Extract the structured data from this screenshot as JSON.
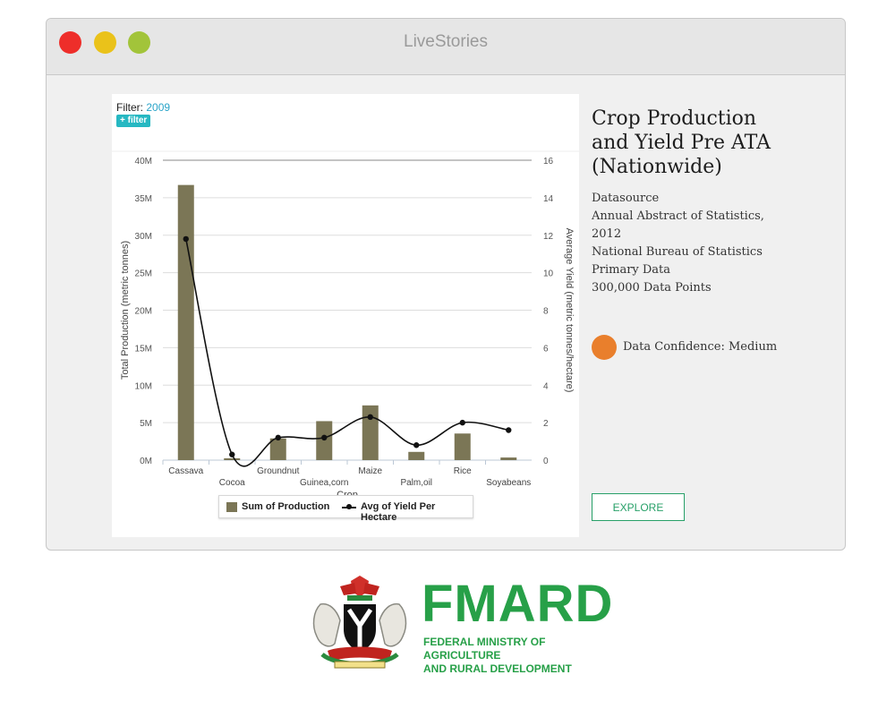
{
  "window": {
    "title": "LiveStories"
  },
  "filter": {
    "label": "Filter:",
    "value": "2009",
    "button_label": "+ filter"
  },
  "chart_data": {
    "type": "bar",
    "categories": [
      "Cassava",
      "Cocoa",
      "Groundnut",
      "Guinea,corn",
      "Maize",
      "Palm,oil",
      "Rice",
      "Soyabeans"
    ],
    "series": [
      {
        "name": "Sum of Production",
        "type": "bar",
        "axis": "left",
        "values": [
          36700000,
          250000,
          2900000,
          5200000,
          7300000,
          1100000,
          3550000,
          350000
        ]
      },
      {
        "name": "Avg of Yield Per Hectare",
        "type": "line",
        "axis": "right",
        "values": [
          11.8,
          0.3,
          1.2,
          1.2,
          2.3,
          0.8,
          2.0,
          1.6
        ]
      }
    ],
    "xlabel": "Crop",
    "ylabel": "Total Production (metric tonnes)",
    "y2label": "Average Yield (metric tonnes/hectare)",
    "ylim": [
      0,
      40000000
    ],
    "y2lim": [
      0,
      16
    ],
    "yticks": [
      "0M",
      "5M",
      "10M",
      "15M",
      "20M",
      "25M",
      "30M",
      "35M",
      "40M"
    ],
    "y2ticks": [
      "0",
      "2",
      "4",
      "6",
      "8",
      "10",
      "12",
      "14",
      "16"
    ],
    "legend": [
      "Sum of Production",
      "Avg of Yield Per Hectare"
    ],
    "legend_position": "bottom",
    "colors": {
      "bar": "#7b7656",
      "line": "#111111"
    }
  },
  "info": {
    "title": "Crop Production and Yield Pre ATA (Nationwide)",
    "datasource_label": "Datasource",
    "source_line1": "Annual Abstract of Statistics, 2012",
    "source_line2": "National Bureau of Statistics",
    "data_type": "Primary Data",
    "data_points": "300,000 Data Points",
    "confidence": "Data Confidence: Medium",
    "confidence_color": "#e97f2c",
    "explore_label": "EXPLORE"
  },
  "logo": {
    "acronym": "FMARD",
    "line1": "FEDERAL MINISTRY OF AGRICULTURE",
    "line2": "AND RURAL DEVELOPMENT",
    "color": "#27a048"
  }
}
